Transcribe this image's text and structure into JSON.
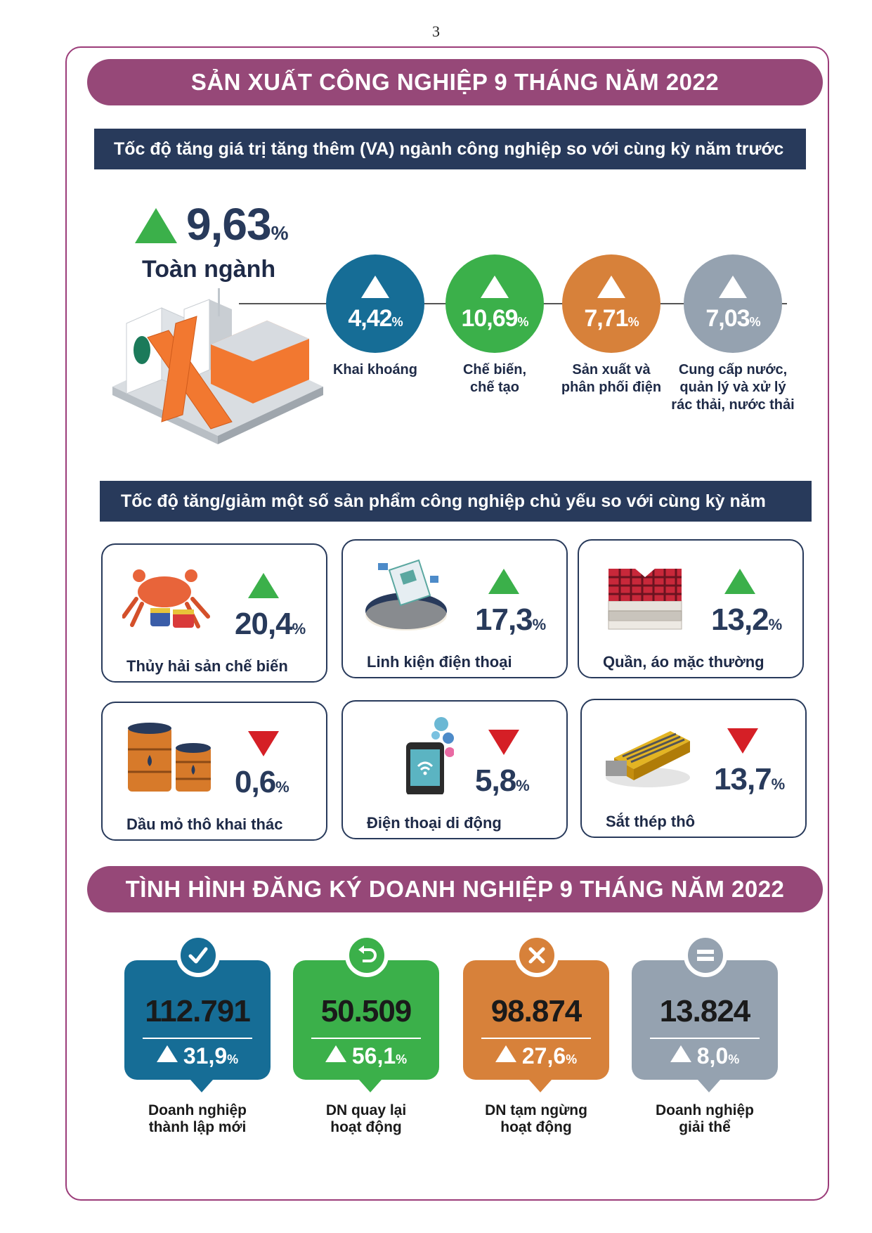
{
  "page_number": "3",
  "industry": {
    "banner": "SẢN XUẤT CÔNG NGHIỆP 9 THÁNG NĂM 2022",
    "va_header": "Tốc độ tăng giá trị tăng thêm (VA) ngành công nghiệp so với cùng kỳ năm trước",
    "total": {
      "value": "9,63",
      "unit": "%",
      "label": "Toàn ngành",
      "direction": "up"
    },
    "sectors": [
      {
        "value": "4,42",
        "unit": "%",
        "label_line1": "Khai khoáng",
        "label_line2": "",
        "label_line3": "",
        "color": "#166d96"
      },
      {
        "value": "10,69",
        "unit": "%",
        "label_line1": "Chế biến,",
        "label_line2": "chế tạo",
        "label_line3": "",
        "color": "#3bb04a"
      },
      {
        "value": "7,71",
        "unit": "%",
        "label_line1": "Sản xuất và",
        "label_line2": "phân phối điện",
        "label_line3": "",
        "color": "#d7813a"
      },
      {
        "value": "7,03",
        "unit": "%",
        "label_line1": "Cung cấp nước,",
        "label_line2": "quản lý và xử lý",
        "label_line3": "rác thải, nước thải",
        "color": "#95a2b0"
      }
    ],
    "products_header": "Tốc độ tăng/giảm một số sản phẩm công nghiệp chủ yếu so với cùng kỳ năm trước",
    "products": [
      {
        "value": "20,4",
        "unit": "%",
        "label": "Thủy hải sản chế biến",
        "direction": "up",
        "icon": "seafood-icon"
      },
      {
        "value": "17,3",
        "unit": "%",
        "label": "Linh kiện điện thoại",
        "direction": "up",
        "icon": "phone-components-icon"
      },
      {
        "value": "13,2",
        "unit": "%",
        "label": "Quần, áo mặc thường",
        "direction": "up",
        "icon": "clothes-icon"
      },
      {
        "value": "0,6",
        "unit": "%",
        "label": "Dầu mỏ thô khai thác",
        "direction": "down",
        "icon": "oil-barrel-icon"
      },
      {
        "value": "5,8",
        "unit": "%",
        "label": "Điện thoại di động",
        "direction": "down",
        "icon": "smartphone-icon"
      },
      {
        "value": "13,7",
        "unit": "%",
        "label": "Sắt thép thô",
        "direction": "down",
        "icon": "steel-icon"
      }
    ]
  },
  "enterprise": {
    "banner": "TÌNH HÌNH ĐĂNG KÝ DOANH NGHIỆP 9 THÁNG NĂM 2022",
    "items": [
      {
        "number": "112.791",
        "change": "31,9",
        "unit": "%",
        "label_line1": "Doanh nghiệp",
        "label_line2": "thành lập mới",
        "icon": "checkmark-icon",
        "color": "#166d96"
      },
      {
        "number": "50.509",
        "change": "56,1",
        "unit": "%",
        "label_line1": "DN quay lại",
        "label_line2": "hoạt động",
        "icon": "return-arrow-icon",
        "color": "#3bb04a"
      },
      {
        "number": "98.874",
        "change": "27,6",
        "unit": "%",
        "label_line1": "DN tạm ngừng",
        "label_line2": "hoạt động",
        "icon": "x-icon",
        "color": "#d7813a"
      },
      {
        "number": "13.824",
        "change": "8,0",
        "unit": "%",
        "label_line1": "Doanh nghiệp",
        "label_line2": "giải thể",
        "icon": "equals-icon",
        "color": "#95a2b0"
      }
    ]
  }
}
